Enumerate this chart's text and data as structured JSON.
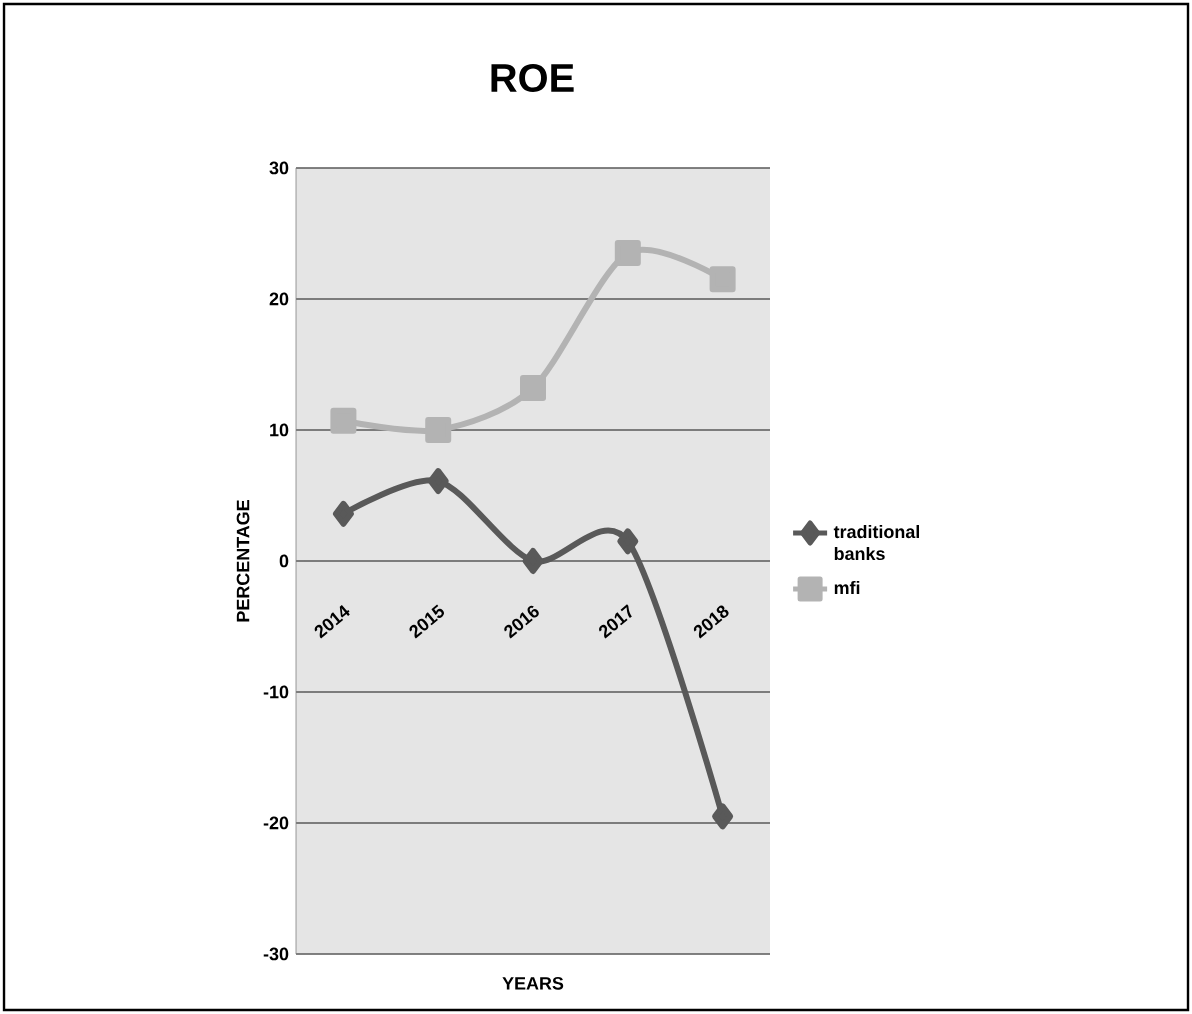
{
  "chart_data": {
    "type": "line",
    "title": "ROE",
    "xlabel": "YEARS",
    "ylabel": "PERCENTAGE",
    "categories": [
      "2014",
      "2015",
      "2016",
      "2017",
      "2018"
    ],
    "series": [
      {
        "name": "traditional banks",
        "color": "#595959",
        "marker": "diamond",
        "values": [
          3.6,
          6.1,
          0,
          1.5,
          -19.5
        ]
      },
      {
        "name": "mfi",
        "color": "#b3b3b3",
        "marker": "square",
        "values": [
          10.7,
          10,
          13.2,
          23.5,
          21.5
        ]
      }
    ],
    "ylim": [
      -30,
      30
    ],
    "yticks": [
      -30,
      -20,
      -10,
      0,
      10,
      20,
      30
    ],
    "grid": "y",
    "legend": "right"
  }
}
